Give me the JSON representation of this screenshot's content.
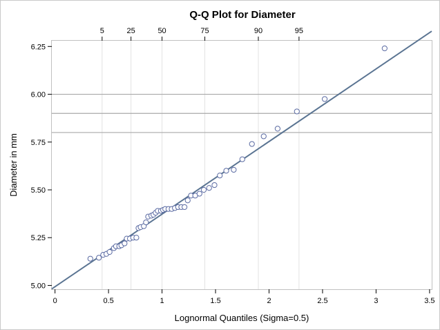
{
  "chart_data": {
    "type": "scatter",
    "title": "Q-Q Plot for Diameter",
    "xlabel": "Lognormal Quantiles (Sigma=0.5)",
    "ylabel": "Diameter in mm",
    "xlim": [
      -0.03,
      3.52
    ],
    "ylim": [
      4.98,
      6.28
    ],
    "x_ticks": [
      0,
      0.5,
      1,
      1.5,
      2,
      2.5,
      3,
      3.5
    ],
    "x_tick_labels": [
      "0",
      "0.5",
      "1",
      "1.5",
      "2",
      "2.5",
      "3",
      "3.5"
    ],
    "y_ticks": [
      5.0,
      5.25,
      5.5,
      5.75,
      6.0,
      6.25
    ],
    "y_tick_labels": [
      "5.00",
      "5.25",
      "5.50",
      "5.75",
      "6.00",
      "6.25"
    ],
    "percentile_axis": {
      "labels": [
        "5",
        "25",
        "50",
        "75",
        "90",
        "95"
      ],
      "positions": [
        0.44,
        0.71,
        1.0,
        1.4,
        1.9,
        2.28
      ]
    },
    "reference_lines_y": [
      5.8,
      5.9,
      6.0
    ],
    "fit_line": {
      "x": [
        -0.03,
        3.52
      ],
      "y": [
        4.982,
        6.33
      ]
    },
    "grid": false,
    "legend": "none",
    "points": {
      "x": [
        0.33,
        0.41,
        0.45,
        0.48,
        0.51,
        0.55,
        0.57,
        0.6,
        0.62,
        0.65,
        0.67,
        0.7,
        0.73,
        0.76,
        0.78,
        0.8,
        0.83,
        0.85,
        0.87,
        0.9,
        0.92,
        0.94,
        0.96,
        0.99,
        1.01,
        1.03,
        1.06,
        1.09,
        1.12,
        1.15,
        1.18,
        1.21,
        1.24,
        1.27,
        1.31,
        1.35,
        1.39,
        1.44,
        1.49,
        1.54,
        1.6,
        1.67,
        1.75,
        1.84,
        1.95,
        2.08,
        2.26,
        2.52,
        3.08
      ],
      "y": [
        5.14,
        5.145,
        5.16,
        5.165,
        5.175,
        5.195,
        5.205,
        5.205,
        5.21,
        5.22,
        5.245,
        5.245,
        5.25,
        5.25,
        5.3,
        5.305,
        5.31,
        5.33,
        5.36,
        5.365,
        5.37,
        5.38,
        5.39,
        5.39,
        5.395,
        5.4,
        5.4,
        5.4,
        5.405,
        5.41,
        5.41,
        5.41,
        5.445,
        5.47,
        5.47,
        5.48,
        5.5,
        5.51,
        5.525,
        5.575,
        5.6,
        5.605,
        5.66,
        5.74,
        5.78,
        5.82,
        5.91,
        5.975,
        6.24
      ]
    },
    "colors": {
      "fit_line": "#5a7492",
      "markers": "#5a6aa2",
      "reference_lines": "#a8a8a8",
      "percentile_grid": "#e2e2e2"
    }
  }
}
